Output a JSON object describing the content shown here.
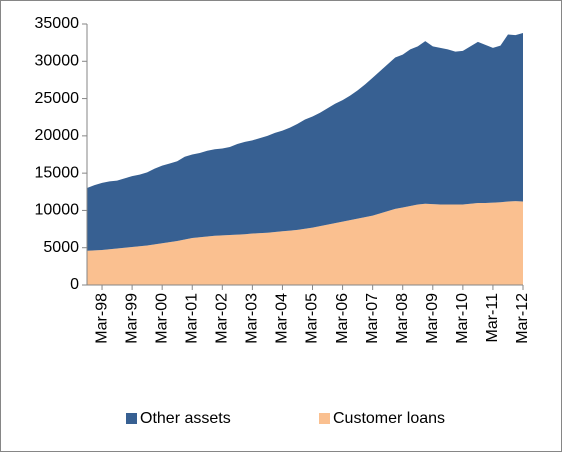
{
  "chart_data": {
    "type": "stacked-area",
    "categories": [
      null,
      null,
      "Mar-98",
      null,
      null,
      null,
      "Mar-99",
      null,
      null,
      null,
      "Mar-00",
      null,
      null,
      null,
      "Mar-01",
      null,
      null,
      null,
      "Mar-02",
      null,
      null,
      null,
      "Mar-03",
      null,
      null,
      null,
      "Mar-04",
      null,
      null,
      null,
      "Mar-05",
      null,
      null,
      null,
      "Mar-06",
      null,
      null,
      null,
      "Mar-07",
      null,
      null,
      null,
      "Mar-08",
      null,
      null,
      null,
      "Mar-09",
      null,
      null,
      null,
      "Mar-10",
      null,
      null,
      null,
      "Mar-11",
      null,
      null,
      null,
      "Mar-12"
    ],
    "series": [
      {
        "name": "Customer loans",
        "color": "#fac090",
        "values": [
          4600,
          4650,
          4700,
          4800,
          4900,
          5000,
          5100,
          5200,
          5300,
          5450,
          5600,
          5750,
          5900,
          6100,
          6300,
          6400,
          6500,
          6600,
          6650,
          6700,
          6750,
          6800,
          6900,
          6950,
          7000,
          7100,
          7200,
          7300,
          7400,
          7550,
          7700,
          7900,
          8100,
          8300,
          8500,
          8700,
          8900,
          9100,
          9300,
          9600,
          9900,
          10200,
          10400,
          10600,
          10800,
          10900,
          10850,
          10800,
          10800,
          10800,
          10800,
          10900,
          11000,
          11000,
          11050,
          11100,
          11200,
          11250,
          11200
        ]
      },
      {
        "name": "Other assets",
        "color": "#376092",
        "values": [
          8400,
          8750,
          9000,
          9100,
          9100,
          9300,
          9500,
          9600,
          9800,
          10150,
          10400,
          10550,
          10700,
          11100,
          11200,
          11300,
          11500,
          11600,
          11650,
          11800,
          12150,
          12400,
          12500,
          12750,
          13000,
          13300,
          13500,
          13800,
          14200,
          14650,
          14900,
          15200,
          15600,
          16000,
          16300,
          16700,
          17200,
          17800,
          18500,
          19100,
          19700,
          20300,
          20500,
          21000,
          21200,
          21800,
          21150,
          21000,
          20800,
          20500,
          20600,
          21100,
          21600,
          21200,
          20750,
          21000,
          22400,
          22250,
          22600
        ]
      }
    ],
    "legend_order": [
      1,
      0
    ],
    "ylim": [
      0,
      35000
    ],
    "yticks": [
      0,
      5000,
      10000,
      15000,
      20000,
      25000,
      30000,
      35000
    ]
  }
}
